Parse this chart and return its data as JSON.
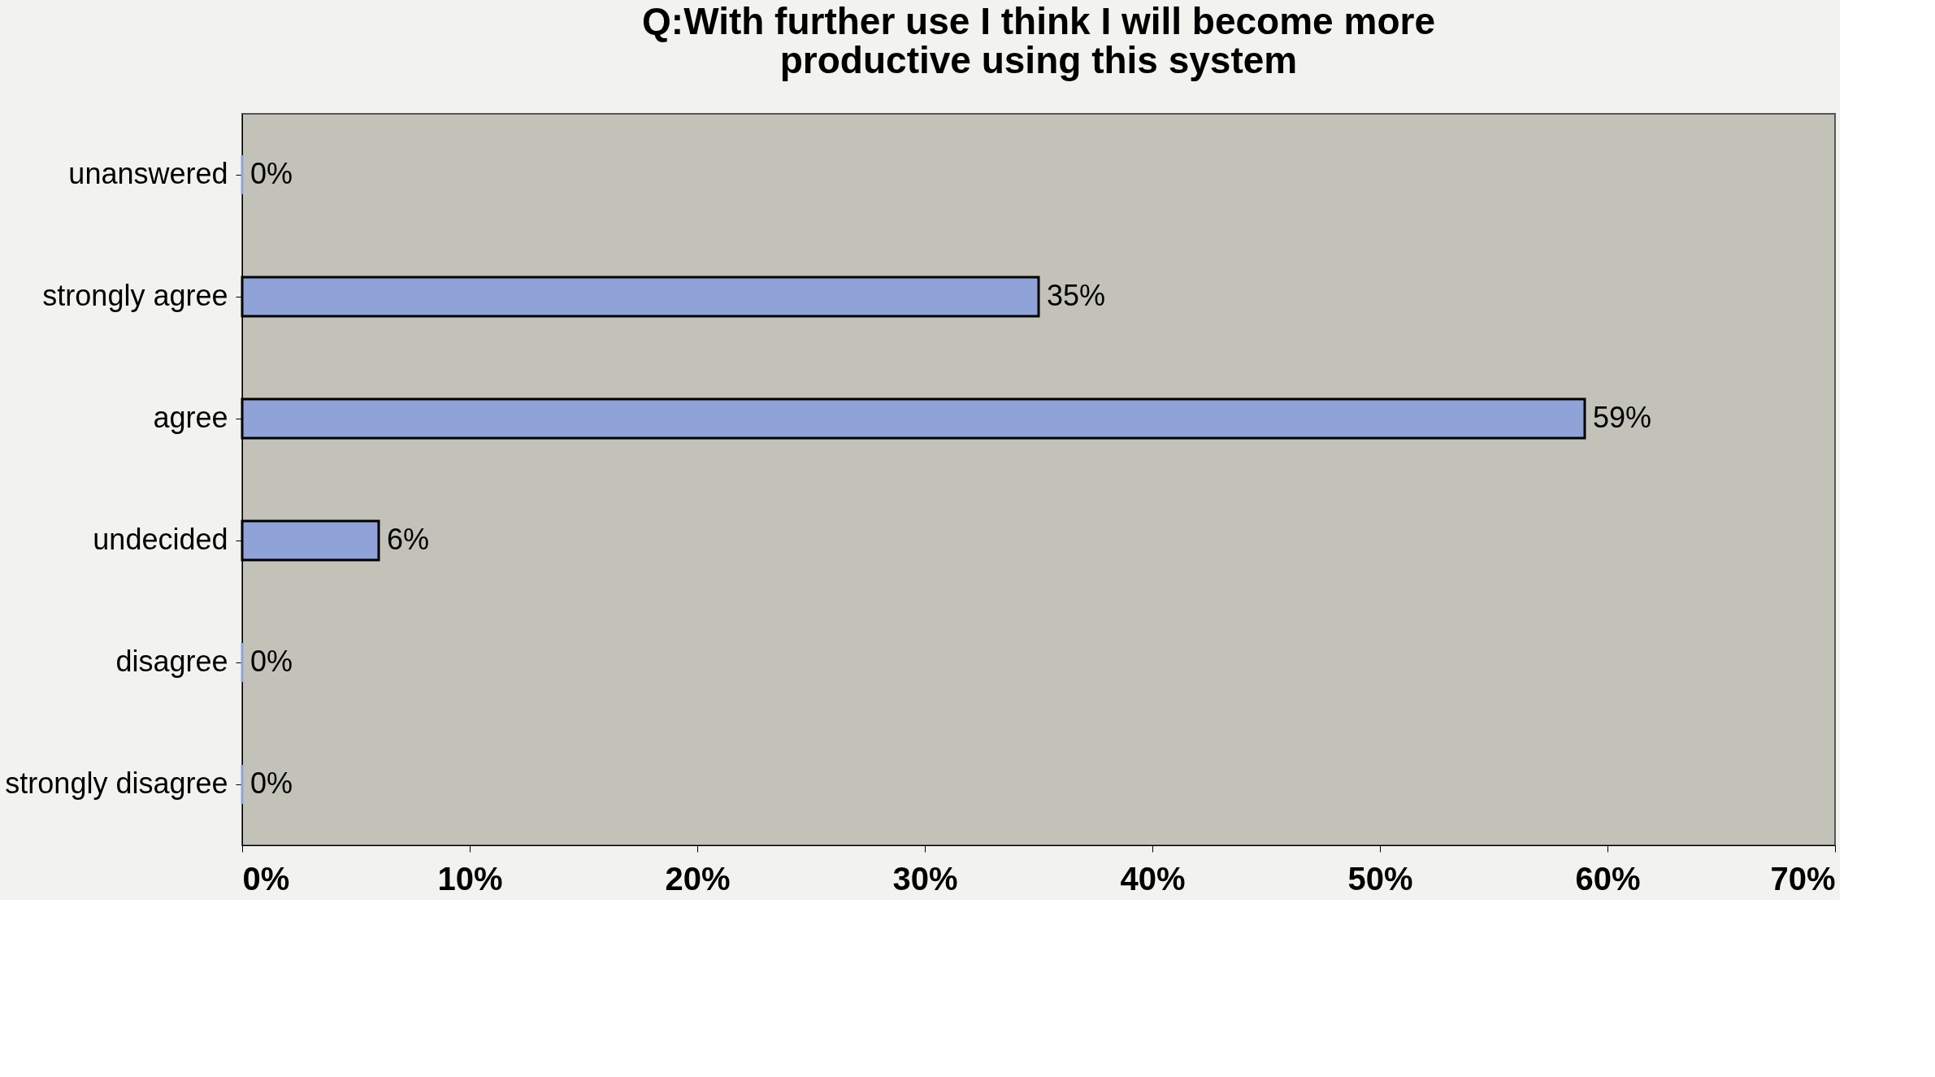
{
  "chart_data": {
    "type": "bar",
    "orientation": "horizontal",
    "title": "Q:With further use I think I will become more productive using this system",
    "categories": [
      "unanswered",
      "strongly agree",
      "agree",
      "undecided",
      "disagree",
      "strongly disagree"
    ],
    "values": [
      0,
      35,
      59,
      6,
      0,
      0
    ],
    "value_labels": [
      "0%",
      "35%",
      "59%",
      "6%",
      "0%",
      "0%"
    ],
    "color": "#8fa3d9",
    "xlim": [
      0,
      70
    ],
    "xticks": [
      {
        "value": 0,
        "label": "0%"
      },
      {
        "value": 10,
        "label": "10%"
      },
      {
        "value": 20,
        "label": "20%"
      },
      {
        "value": 30,
        "label": "30%"
      },
      {
        "value": 40,
        "label": "40%"
      },
      {
        "value": 50,
        "label": "50%"
      },
      {
        "value": 60,
        "label": "60%"
      },
      {
        "value": 70,
        "label": "70%"
      }
    ],
    "grid": false
  }
}
